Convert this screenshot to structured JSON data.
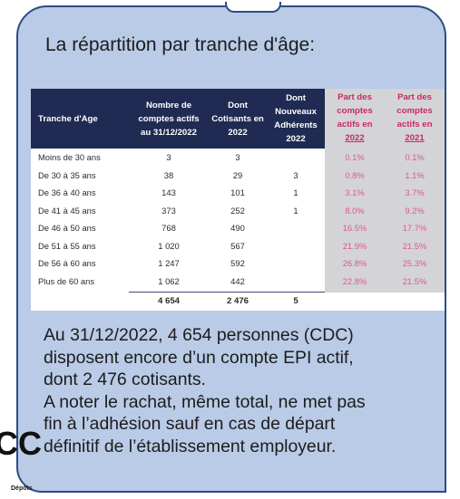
{
  "title": "La répartition par tranche d'âge:",
  "table": {
    "headers": {
      "tranche": "Tranche d'Age",
      "nombre": [
        "Nombre de",
        "comptes actifs",
        "au 31/12/2022"
      ],
      "cotisants": [
        "Dont",
        "Cotisants en",
        "2022"
      ],
      "nouveaux": [
        "Dont",
        "Nouveaux",
        "Adhérents",
        "2022"
      ],
      "part2022": [
        "Part des",
        "comptes",
        "actifs en",
        "2022"
      ],
      "part2021": [
        "Part des",
        "comptes",
        "actifs en",
        "2021"
      ]
    },
    "rows": [
      {
        "tranche": "Moins de 30 ans",
        "nombre": "3",
        "cotisants": "3",
        "nouveaux": "",
        "part2022": "0.1%",
        "part2021": "0.1%"
      },
      {
        "tranche": "De 30 à 35 ans",
        "nombre": "38",
        "cotisants": "29",
        "nouveaux": "3",
        "part2022": "0.8%",
        "part2021": "1.1%"
      },
      {
        "tranche": "De 36 à 40 ans",
        "nombre": "143",
        "cotisants": "101",
        "nouveaux": "1",
        "part2022": "3.1%",
        "part2021": "3.7%"
      },
      {
        "tranche": "De 41 à 45 ans",
        "nombre": "373",
        "cotisants": "252",
        "nouveaux": "1",
        "part2022": "8.0%",
        "part2021": "9.2%"
      },
      {
        "tranche": "De 46 à 50 ans",
        "nombre": "768",
        "cotisants": "490",
        "nouveaux": "",
        "part2022": "16.5%",
        "part2021": "17.7%"
      },
      {
        "tranche": "De 51 à 55 ans",
        "nombre": "1 020",
        "cotisants": "567",
        "nouveaux": "",
        "part2022": "21.9%",
        "part2021": "21.5%"
      },
      {
        "tranche": "De 56 à 60 ans",
        "nombre": "1 247",
        "cotisants": "592",
        "nouveaux": "",
        "part2022": "26.8%",
        "part2021": "25.3%"
      },
      {
        "tranche": "Plus de 60 ans",
        "nombre": "1 062",
        "cotisants": "442",
        "nouveaux": "",
        "part2022": "22.8%",
        "part2021": "21.5%"
      }
    ],
    "totals": {
      "nombre": "4 654",
      "cotisants": "2 476",
      "nouveaux": "5"
    }
  },
  "body": [
    "Au 31/12/2022, 4 654 personnes (CDC)",
    "disposent encore d’un compte EPI actif,",
    "dont 2 476 cotisants.",
    "A noter le rachat, même total, ne met pas",
    "fin à l’adhésion sauf en cas de départ",
    "définitif de l’établissement employeur."
  ],
  "logo": {
    "letters": "CC",
    "word": "Dépôts"
  },
  "colors": {
    "header_bg": "#1f2b52",
    "card_bg": "#b9cbe6",
    "card_border": "#2b4c86",
    "share_text": "#e0578c"
  }
}
